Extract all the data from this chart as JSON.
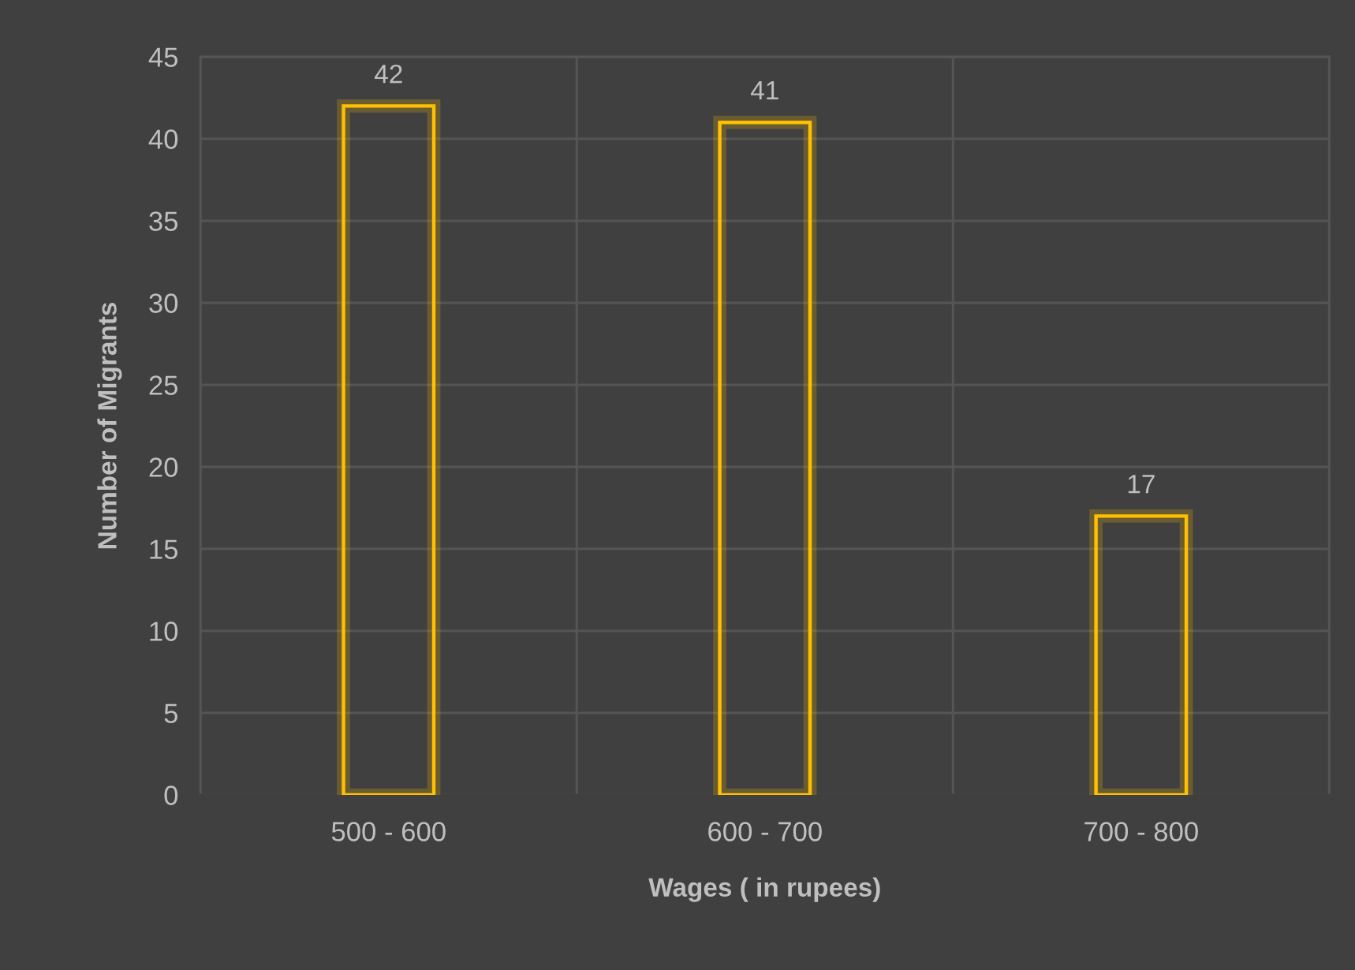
{
  "chart_data": {
    "type": "bar",
    "xlabel": "Wages ( in rupees)",
    "ylabel": "Number of Migrants",
    "categories": [
      "500 - 600",
      "600 - 700",
      "700 - 800"
    ],
    "values": [
      42,
      41,
      17
    ],
    "color": "#ffc000",
    "ylim": [
      0,
      45
    ],
    "yticks": [
      0,
      5,
      10,
      15,
      20,
      25,
      30,
      35,
      40,
      45
    ],
    "grid": true,
    "data_labels": true
  }
}
